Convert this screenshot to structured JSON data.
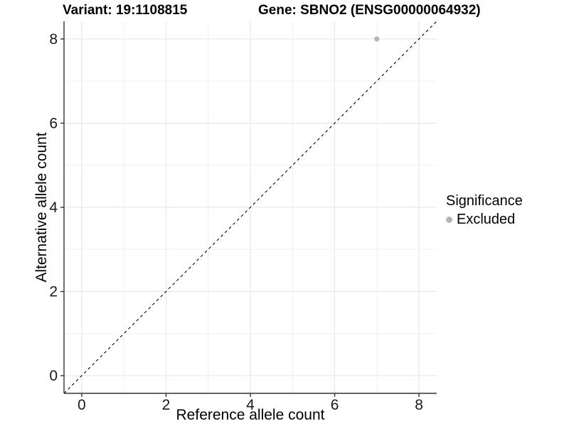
{
  "title": {
    "variant": "Variant: 19:1108815",
    "gene": "Gene: SBNO2 (ENSG00000064932)"
  },
  "axis": {
    "x_label": "Reference allele count",
    "y_label": "Alternative allele count"
  },
  "legend": {
    "title": "Significance",
    "items": [
      {
        "label": "Excluded",
        "marker_color": "#b5b5b5"
      }
    ]
  },
  "colors": {
    "background": "#ffffff",
    "grid_major": "#e4e4e4",
    "grid_minor": "#f1f1f1",
    "axis_line": "#333333",
    "tick_mark": "#333333",
    "tick_text": "#1a1a1a",
    "point": "#b5b5b5",
    "reference_line": "#000000"
  },
  "chart_data": {
    "type": "scatter",
    "title": "Variant: 19:1108815   Gene: SBNO2 (ENSG00000064932)",
    "xlabel": "Reference allele count",
    "ylabel": "Alternative allele count",
    "xlim": [
      -0.42,
      8.42
    ],
    "ylim": [
      -0.42,
      8.42
    ],
    "x_ticks": [
      0,
      2,
      4,
      6,
      8
    ],
    "y_ticks": [
      0,
      2,
      4,
      6,
      8
    ],
    "x_minor_ticks": [
      1,
      3,
      5,
      7
    ],
    "y_minor_ticks": [
      1,
      3,
      5,
      7
    ],
    "grid": true,
    "legend_position": "right",
    "series": [
      {
        "name": "Excluded",
        "color": "#b5b5b5",
        "points": [
          {
            "x": 7,
            "y": 8
          }
        ]
      }
    ],
    "reference_line": {
      "slope": 1,
      "intercept": 0,
      "style": "dashed",
      "color": "#000000"
    }
  }
}
